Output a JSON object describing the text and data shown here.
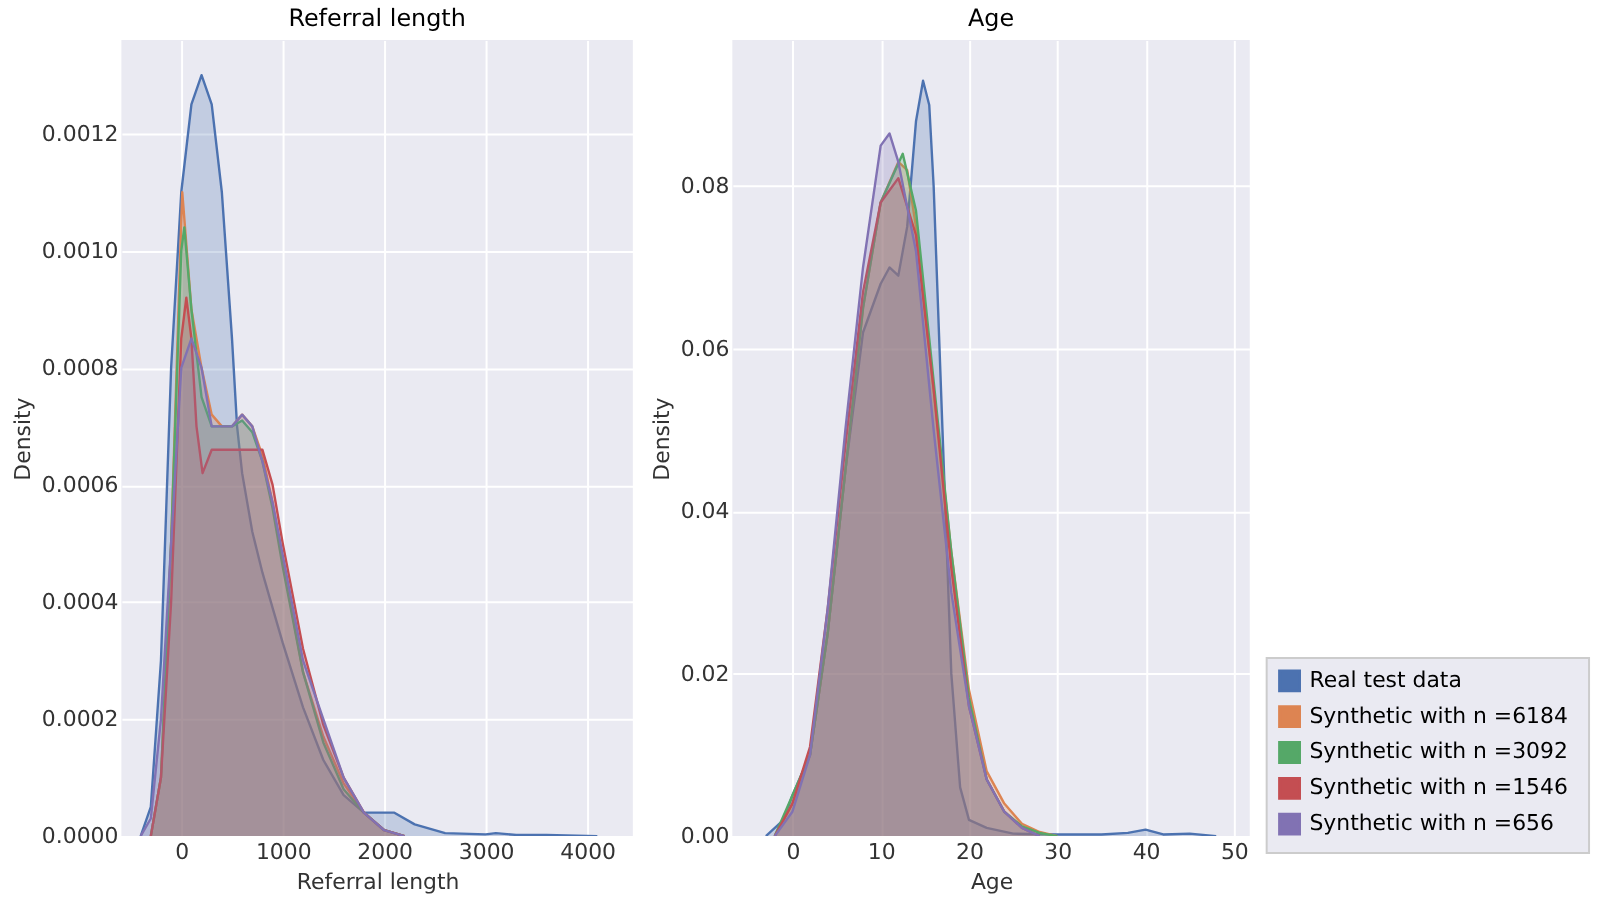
{
  "chart_data": [
    {
      "type": "area",
      "title": "Referral length",
      "xlabel": "Referral length",
      "ylabel": "Density",
      "grid": true,
      "legend": false,
      "xlim": [
        -590,
        4450
      ],
      "ylim": [
        0,
        0.00136
      ],
      "xticks": [
        0,
        1000,
        2000,
        3000,
        4000
      ],
      "yticks": [
        {
          "value": 0,
          "label": "0.0000"
        },
        {
          "value": 0.0002,
          "label": "0.0002"
        },
        {
          "value": 0.0004,
          "label": "0.0004"
        },
        {
          "value": 0.0006,
          "label": "0.0006"
        },
        {
          "value": 0.0008,
          "label": "0.0008"
        },
        {
          "value": 0.001,
          "label": "0.0010"
        },
        {
          "value": 0.0012,
          "label": "0.0012"
        }
      ],
      "series": [
        {
          "color": "#4c72b0",
          "x": [
            -400,
            -300,
            -200,
            -100,
            0,
            100,
            200,
            300,
            400,
            500,
            550,
            600,
            700,
            800,
            900,
            1000,
            1200,
            1400,
            1600,
            1800,
            2000,
            2100,
            2300,
            2600,
            3000,
            3100,
            3300,
            3600,
            4100
          ],
          "values": [
            0,
            5e-05,
            0.0003,
            0.0008,
            0.0011,
            0.00125,
            0.0013,
            0.00125,
            0.0011,
            0.00085,
            0.0007,
            0.00062,
            0.00052,
            0.00045,
            0.00039,
            0.00033,
            0.00022,
            0.00013,
            7e-05,
            4e-05,
            4e-05,
            4e-05,
            2e-05,
            5e-06,
            3e-06,
            5e-06,
            2e-06,
            2e-06,
            0
          ]
        },
        {
          "color": "#dd8452",
          "x": [
            -300,
            -200,
            -100,
            0,
            10,
            100,
            200,
            300,
            400,
            500,
            600,
            700,
            800,
            900,
            1000,
            1200,
            1400,
            1600,
            1800,
            2000,
            2200
          ],
          "values": [
            0,
            0.0001,
            0.0005,
            0.00105,
            0.0011,
            0.0009,
            0.0008,
            0.00072,
            0.0007,
            0.0007,
            0.00072,
            0.0007,
            0.00065,
            0.00057,
            0.00047,
            0.00028,
            0.00017,
            9e-05,
            4e-05,
            1e-05,
            0
          ]
        },
        {
          "color": "#55a868",
          "x": [
            -300,
            -200,
            -100,
            0,
            30,
            100,
            200,
            300,
            400,
            500,
            600,
            700,
            800,
            900,
            1000,
            1200,
            1400,
            1600,
            1800,
            2000,
            2200
          ],
          "values": [
            0,
            0.0001,
            0.0005,
            0.001,
            0.00104,
            0.0009,
            0.00075,
            0.0007,
            0.0007,
            0.0007,
            0.00071,
            0.00069,
            0.00064,
            0.00056,
            0.00046,
            0.00028,
            0.00016,
            8e-05,
            4e-05,
            1e-05,
            0
          ]
        },
        {
          "color": "#c44e52",
          "x": [
            -300,
            -200,
            -100,
            0,
            50,
            100,
            150,
            210,
            300,
            400,
            600,
            800,
            900,
            1000,
            1200,
            1400,
            1600,
            1800,
            2000,
            2200
          ],
          "values": [
            0,
            0.0001,
            0.0004,
            0.00085,
            0.00092,
            0.00085,
            0.0007,
            0.00062,
            0.00066,
            0.00066,
            0.00066,
            0.00066,
            0.0006,
            0.0005,
            0.00032,
            0.00019,
            0.0001,
            4e-05,
            1e-05,
            0
          ]
        },
        {
          "color": "#8172b3",
          "x": [
            -400,
            -300,
            -200,
            -100,
            0,
            100,
            200,
            300,
            400,
            500,
            600,
            700,
            800,
            900,
            1000,
            1200,
            1400,
            1600,
            1800,
            2000,
            2200
          ],
          "values": [
            0,
            3e-05,
            0.0002,
            0.0005,
            0.0008,
            0.00085,
            0.0008,
            0.0007,
            0.0007,
            0.0007,
            0.00072,
            0.0007,
            0.00064,
            0.00057,
            0.00048,
            0.0003,
            0.0002,
            0.0001,
            4e-05,
            1e-05,
            0
          ]
        }
      ]
    },
    {
      "type": "area",
      "title": "Age",
      "xlabel": "Age",
      "ylabel": "Density",
      "grid": true,
      "legend": "bottom right",
      "xlim": [
        -6.8,
        51.8
      ],
      "ylim": [
        0,
        0.098
      ],
      "xticks": [
        0,
        10,
        20,
        30,
        40,
        50
      ],
      "yticks": [
        {
          "value": 0,
          "label": "0.00"
        },
        {
          "value": 0.02,
          "label": "0.02"
        },
        {
          "value": 0.04,
          "label": "0.04"
        },
        {
          "value": 0.06,
          "label": "0.06"
        },
        {
          "value": 0.08,
          "label": "0.08"
        }
      ],
      "series": [
        {
          "name": "Real test data",
          "color": "#4c72b0",
          "x": [
            -3,
            -1,
            0,
            2,
            4,
            6,
            8,
            10,
            11,
            12,
            13,
            14,
            14.8,
            15.5,
            16,
            17,
            18,
            19,
            20,
            22,
            25,
            30,
            35,
            38,
            40,
            42,
            45,
            48
          ],
          "values": [
            0,
            0.002,
            0.005,
            0.01,
            0.025,
            0.045,
            0.062,
            0.068,
            0.07,
            0.069,
            0.075,
            0.088,
            0.093,
            0.09,
            0.08,
            0.05,
            0.02,
            0.006,
            0.002,
            0.001,
            0.0003,
            0.0002,
            0.0002,
            0.0004,
            0.0008,
            0.0002,
            0.0003,
            0
          ]
        },
        {
          "name": "Synthetic with  n =6184",
          "color": "#dd8452",
          "x": [
            -2,
            0,
            2,
            4,
            6,
            8,
            10,
            12,
            13,
            14,
            16,
            18,
            20,
            22,
            24,
            26,
            28,
            30
          ],
          "values": [
            0,
            0.004,
            0.01,
            0.025,
            0.045,
            0.065,
            0.078,
            0.083,
            0.082,
            0.075,
            0.055,
            0.035,
            0.018,
            0.008,
            0.004,
            0.0015,
            0.0005,
            0
          ]
        },
        {
          "name": "Synthetic with  n =3092",
          "color": "#55a868",
          "x": [
            -2,
            0,
            2,
            4,
            6,
            8,
            10,
            12.5,
            14,
            16,
            18,
            20,
            22,
            24,
            26,
            28,
            30
          ],
          "values": [
            0,
            0.005,
            0.01,
            0.025,
            0.045,
            0.065,
            0.078,
            0.084,
            0.077,
            0.056,
            0.035,
            0.017,
            0.007,
            0.003,
            0.0012,
            0.0004,
            0
          ]
        },
        {
          "name": "Synthetic with  n =1546",
          "color": "#c44e52",
          "x": [
            -2,
            0,
            2,
            4,
            6,
            8,
            10,
            12,
            14,
            16,
            18,
            20,
            22,
            24,
            26,
            28
          ],
          "values": [
            0,
            0.004,
            0.011,
            0.028,
            0.048,
            0.067,
            0.078,
            0.081,
            0.074,
            0.055,
            0.033,
            0.016,
            0.007,
            0.003,
            0.001,
            0
          ]
        },
        {
          "name": "Synthetic with  n =656",
          "color": "#8172b3",
          "x": [
            -2,
            0,
            2,
            4,
            6,
            8,
            10,
            11,
            12,
            14,
            16,
            18,
            20,
            22,
            24,
            26,
            28
          ],
          "values": [
            0,
            0.003,
            0.01,
            0.028,
            0.05,
            0.07,
            0.085,
            0.0865,
            0.083,
            0.072,
            0.05,
            0.03,
            0.016,
            0.007,
            0.003,
            0.001,
            0
          ]
        }
      ]
    }
  ]
}
